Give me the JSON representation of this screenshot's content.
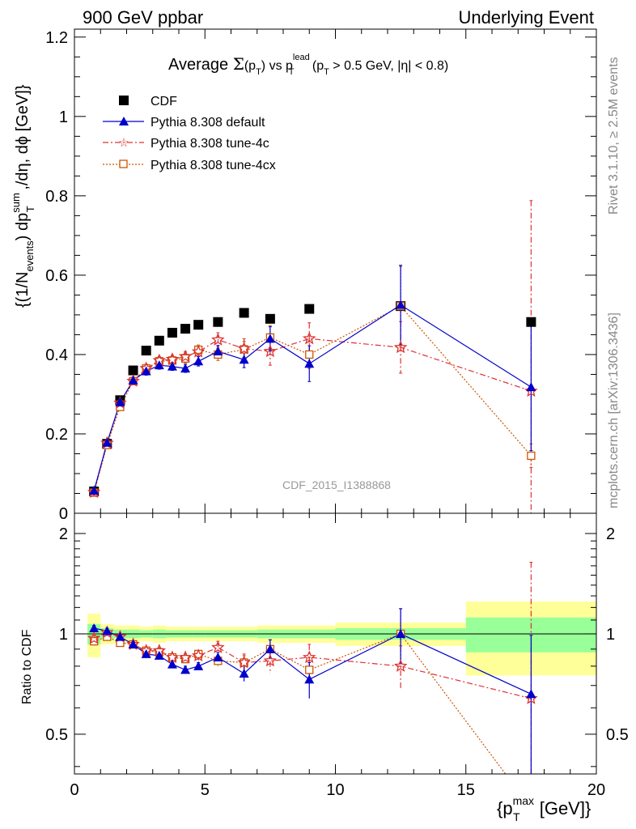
{
  "header": {
    "left": "900 GeV ppbar",
    "right": "Underlying Event"
  },
  "side_labels": {
    "top": "Rivet 3.1.10, ≥ 2.5M events",
    "bottom": "mcplots.cern.ch [arXiv:1306.3436]"
  },
  "watermark": "CDF_2015_I1388868",
  "title_parts": {
    "a": "Average ",
    "sigma": "Σ",
    "b": "(p",
    "b_sub": "T",
    "c": ") vs p",
    "c_sup": "lead",
    "c_sub": "T",
    "d": " (p",
    "d_sub": "T",
    "e": " > 0.5 GeV, |η| < 0.8)"
  },
  "ylabel_parts": {
    "a": "{(1/N",
    "a_sub": "events",
    "b": ") dp",
    "b_sup": "sum",
    "b_sub": "T",
    "c": " ,/dη, dϕ [GeV]}"
  },
  "ratio_ylabel": "Ratio to CDF",
  "xlabel_parts": {
    "a": "{p",
    "a_sup": "max",
    "a_sub": "T",
    "b": " [GeV]}"
  },
  "colors": {
    "pythia_default": "#0000cc",
    "tune4c": "#dd3333",
    "tune4cx": "#cc5500",
    "band_green": "#99ff99",
    "band_yellow": "#ffff99"
  },
  "chart_data": {
    "type": "scatter",
    "x_axis": {
      "range": [
        0,
        20
      ],
      "ticks": [
        0,
        5,
        10,
        15,
        20
      ]
    },
    "main_panel": {
      "y_axis": {
        "range": [
          0,
          1.22
        ],
        "ticks": [
          0,
          0.2,
          0.4,
          0.6,
          0.8,
          1,
          1.2
        ],
        "tick_labels": [
          "0",
          "0.2",
          "0.4",
          "0.6",
          "0.8",
          "1",
          "1.2"
        ]
      },
      "legend_placement": "top-left",
      "series": [
        {
          "name": "CDF",
          "marker": "filled-square",
          "x": [
            0.75,
            1.25,
            1.75,
            2.25,
            2.75,
            3.25,
            3.75,
            4.25,
            4.75,
            5.5,
            6.5,
            7.5,
            9.0,
            12.5,
            17.5
          ],
          "y": [
            0.055,
            0.175,
            0.285,
            0.36,
            0.41,
            0.435,
            0.455,
            0.465,
            0.475,
            0.482,
            0.505,
            0.49,
            0.515,
            0.522,
            0.482
          ]
        },
        {
          "name": "Pythia 8.308 default",
          "marker": "triangle",
          "line": "solid",
          "x": [
            0.75,
            1.25,
            1.75,
            2.25,
            2.75,
            3.25,
            3.75,
            4.25,
            4.75,
            5.5,
            6.5,
            7.5,
            9.0,
            12.5,
            17.5
          ],
          "y": [
            0.057,
            0.178,
            0.28,
            0.335,
            0.358,
            0.373,
            0.37,
            0.365,
            0.383,
            0.408,
            0.387,
            0.44,
            0.377,
            0.525,
            0.318
          ],
          "err": [
            0.005,
            0.005,
            0.008,
            0.008,
            0.01,
            0.01,
            0.01,
            0.01,
            0.012,
            0.015,
            0.02,
            0.03,
            0.045,
            0.1,
            0.16
          ]
        },
        {
          "name": "Pythia 8.308 tune-4c",
          "marker": "star",
          "line": "dashdot",
          "x": [
            0.75,
            1.25,
            1.75,
            2.25,
            2.75,
            3.25,
            3.75,
            4.25,
            4.75,
            5.5,
            6.5,
            7.5,
            9.0,
            12.5,
            17.5
          ],
          "y": [
            0.053,
            0.177,
            0.278,
            0.333,
            0.365,
            0.385,
            0.388,
            0.395,
            0.407,
            0.437,
            0.415,
            0.408,
            0.44,
            0.418,
            0.308
          ],
          "err": [
            0.005,
            0.005,
            0.008,
            0.008,
            0.01,
            0.01,
            0.01,
            0.012,
            0.012,
            0.018,
            0.025,
            0.035,
            0.04,
            0.065,
            0.48
          ]
        },
        {
          "name": "Pythia 8.308 tune-4cx",
          "marker": "open-square",
          "line": "dotted",
          "x": [
            0.75,
            1.25,
            1.75,
            2.25,
            2.75,
            3.25,
            3.75,
            4.25,
            4.75,
            5.5,
            6.5,
            7.5,
            9.0,
            12.5,
            17.5
          ],
          "y": [
            0.052,
            0.172,
            0.268,
            0.333,
            0.365,
            0.383,
            0.385,
            0.39,
            0.412,
            0.4,
            0.413,
            0.443,
            0.4,
            0.522,
            0.145
          ],
          "err": [
            0.005,
            0.005,
            0.008,
            0.008,
            0.01,
            0.01,
            0.01,
            0.012,
            0.012,
            0.015,
            0.02,
            0.03,
            0.035,
            0.1,
            0.03
          ]
        }
      ]
    },
    "ratio_panel": {
      "y_axis": {
        "range": [
          0.38,
          2.3
        ],
        "scale": "log",
        "ticks": [
          0.5,
          1,
          2
        ],
        "tick_labels": [
          "0.5",
          "1",
          "2"
        ]
      },
      "reference_line": 1,
      "bands": {
        "edges": [
          [
            0.5,
            1.0
          ],
          [
            1.0,
            1.5
          ],
          [
            1.5,
            2.0
          ],
          [
            2.0,
            2.5
          ],
          [
            2.5,
            3.0
          ],
          [
            3.0,
            3.5
          ],
          [
            3.5,
            4.0
          ],
          [
            4.0,
            4.5
          ],
          [
            4.5,
            5.0
          ],
          [
            5.0,
            6.0
          ],
          [
            6.0,
            7.0
          ],
          [
            7.0,
            8.0
          ],
          [
            8.0,
            10.0
          ],
          [
            10.0,
            15.0
          ],
          [
            15.0,
            20.0
          ]
        ],
        "green": [
          0.07,
          0.04,
          0.03,
          0.03,
          0.025,
          0.03,
          0.025,
          0.025,
          0.025,
          0.025,
          0.025,
          0.03,
          0.03,
          0.04,
          0.12
        ],
        "yellow": [
          0.15,
          0.07,
          0.06,
          0.06,
          0.05,
          0.06,
          0.05,
          0.05,
          0.05,
          0.05,
          0.05,
          0.06,
          0.06,
          0.08,
          0.25
        ]
      },
      "series": [
        {
          "name": "Pythia 8.308 default",
          "y": [
            1.04,
            1.02,
            0.98,
            0.93,
            0.87,
            0.86,
            0.81,
            0.78,
            0.8,
            0.85,
            0.76,
            0.9,
            0.73,
            1.0,
            0.66
          ],
          "err": [
            0.02,
            0.02,
            0.02,
            0.02,
            0.02,
            0.02,
            0.02,
            0.02,
            0.02,
            0.03,
            0.04,
            0.06,
            0.09,
            0.19,
            0.33
          ]
        },
        {
          "name": "Pythia 8.308 tune-4c",
          "y": [
            0.97,
            1.01,
            0.98,
            0.93,
            0.89,
            0.89,
            0.85,
            0.85,
            0.86,
            0.91,
            0.82,
            0.83,
            0.85,
            0.8,
            0.64
          ],
          "err": [
            0.02,
            0.02,
            0.02,
            0.02,
            0.02,
            0.02,
            0.02,
            0.02,
            0.03,
            0.04,
            0.05,
            0.07,
            0.08,
            0.12,
            1.0
          ]
        },
        {
          "name": "Pythia 8.308 tune-4cx",
          "y": [
            0.95,
            0.98,
            0.94,
            0.93,
            0.89,
            0.88,
            0.85,
            0.84,
            0.87,
            0.83,
            0.82,
            0.9,
            0.78,
            1.0,
            0.3
          ],
          "err": [
            0.02,
            0.02,
            0.02,
            0.02,
            0.02,
            0.02,
            0.02,
            0.02,
            0.02,
            0.03,
            0.04,
            0.06,
            0.07,
            0.19,
            0.06
          ]
        }
      ]
    }
  }
}
